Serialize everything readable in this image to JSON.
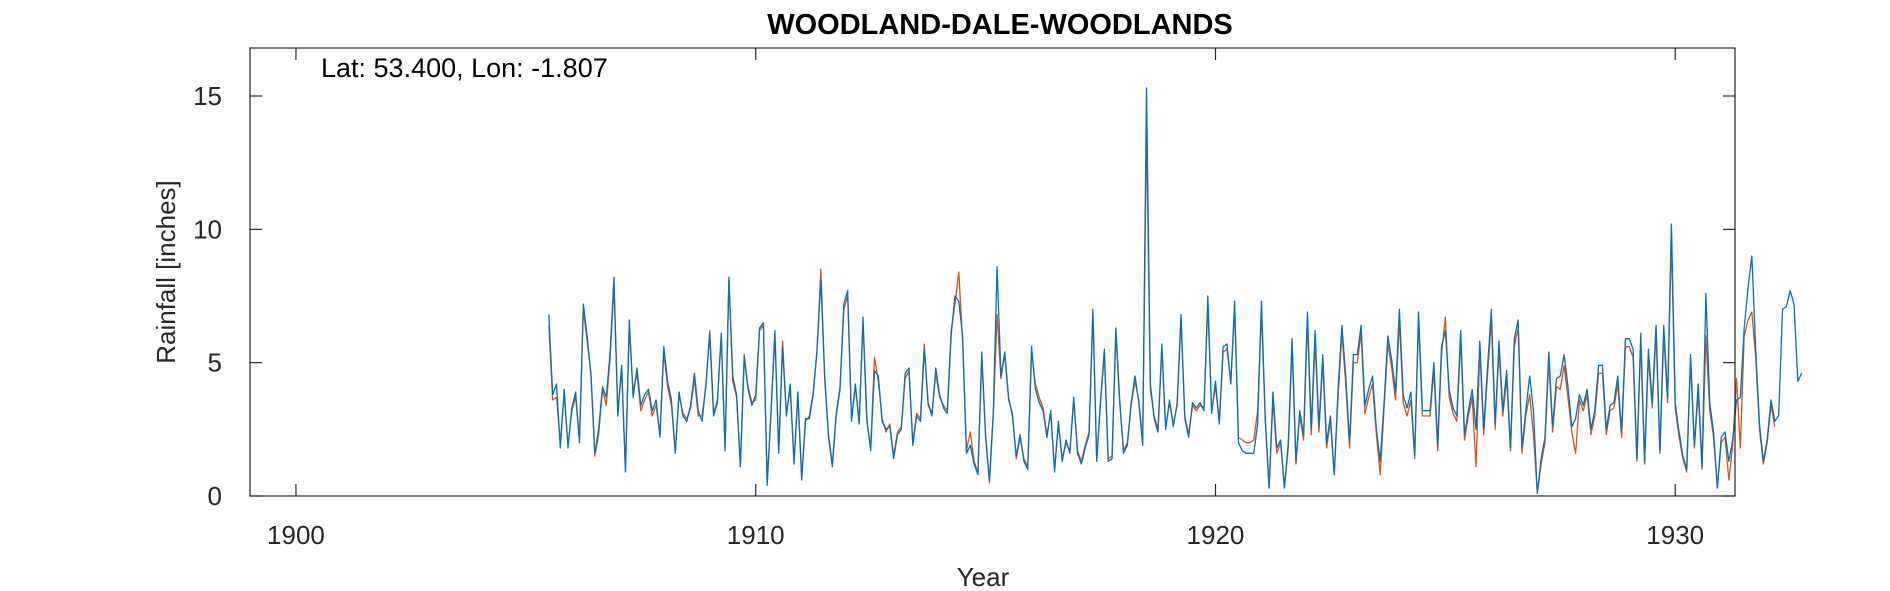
{
  "chart_data": {
    "type": "line",
    "title": "WOODLAND-DALE-WOODLANDS",
    "xlabel": "Year",
    "ylabel": "Rainfall [inches]",
    "annotation": "Lat: 53.400, Lon: -1.807",
    "xlim": [
      1899,
      1931.3
    ],
    "ylim": [
      0,
      16.8
    ],
    "xticks": [
      1900,
      1910,
      1920,
      1930
    ],
    "yticks": [
      0,
      5,
      10,
      15
    ],
    "grid": false,
    "series": [
      {
        "color": "#0072BD",
        "x_start": 1905.5,
        "x_step": 0.0833333,
        "values": [
          6.8,
          3.8,
          4.2,
          1.8,
          4.0,
          1.8,
          3.3,
          3.9,
          2.0,
          7.2,
          6.0,
          4.5,
          1.6,
          2.5,
          4.1,
          3.7,
          5.4,
          8.2,
          3.0,
          4.9,
          0.9,
          6.6,
          3.7,
          4.8,
          3.4,
          3.8,
          4.0,
          3.2,
          3.6,
          2.2,
          5.6,
          4.3,
          3.6,
          1.6,
          3.9,
          3.0,
          2.8,
          3.4,
          4.6,
          3.2,
          2.8,
          4.2,
          6.1,
          3.0,
          3.5,
          6.1,
          1.7,
          8.2,
          4.5,
          3.8,
          1.1,
          5.3,
          4.0,
          3.4,
          3.8,
          6.3,
          6.5,
          0.4,
          3.2,
          6.2,
          1.6,
          5.6,
          3.0,
          4.2,
          1.2,
          3.9,
          0.6,
          2.9,
          2.9,
          3.8,
          5.5,
          8.1,
          4.5,
          2.2,
          1.1,
          3.0,
          4.0,
          7.2,
          7.7,
          2.8,
          4.2,
          2.7,
          6.7,
          2.9,
          1.7,
          4.7,
          4.5,
          2.8,
          2.5,
          2.6,
          1.4,
          2.3,
          2.5,
          4.6,
          4.8,
          1.9,
          3.0,
          2.8,
          5.5,
          3.5,
          3.0,
          4.8,
          3.8,
          3.3,
          3.1,
          6.0,
          7.5,
          7.3,
          6.0,
          1.6,
          1.9,
          1.2,
          0.8,
          5.4,
          2.2,
          0.6,
          3.1,
          8.6,
          4.5,
          5.4,
          3.7,
          3.0,
          1.5,
          2.3,
          1.3,
          1.0,
          5.6,
          4.0,
          3.5,
          3.2,
          2.2,
          3.2,
          0.9,
          2.8,
          1.3,
          2.1,
          1.6,
          3.7,
          1.6,
          1.2,
          1.8,
          2.3,
          7.0,
          1.3,
          3.5,
          5.5,
          1.3,
          1.4,
          6.3,
          3.6,
          1.6,
          1.9,
          3.5,
          4.5,
          3.5,
          1.9,
          15.3,
          4.2,
          2.9,
          2.4,
          5.7,
          2.5,
          3.6,
          2.6,
          3.5,
          6.8,
          2.9,
          2.2,
          3.5,
          3.3,
          3.5,
          3.2,
          7.5,
          3.1,
          4.3,
          2.7,
          5.6,
          5.7,
          4.2,
          7.3,
          2.0,
          1.7,
          1.6,
          1.6,
          1.6,
          2.7,
          7.3,
          2.9,
          0.3,
          3.9,
          1.8,
          2.1,
          0.3,
          2.0,
          5.9,
          1.3,
          3.2,
          2.3,
          6.9,
          2.5,
          6.2,
          2.6,
          5.3,
          2.0,
          3.0,
          0.8,
          4.0,
          6.4,
          4.5,
          2.0,
          5.3,
          5.3,
          6.4,
          3.4,
          4.0,
          4.5,
          2.5,
          1.3,
          3.5,
          6.0,
          5.1,
          3.9,
          7.0,
          3.8,
          3.3,
          3.9,
          1.5,
          6.9,
          3.2,
          3.2,
          3.2,
          5.0,
          1.9,
          5.6,
          6.2,
          4.0,
          3.3,
          3.0,
          6.2,
          2.3,
          3.2,
          4.0,
          2.5,
          5.8,
          2.5,
          4.8,
          7.0,
          2.7,
          5.8,
          3.2,
          4.7,
          1.8,
          5.9,
          6.6,
          1.8,
          3.2,
          4.5,
          3.2,
          0.1,
          1.4,
          2.2,
          5.4,
          2.6,
          4.4,
          4.5,
          5.3,
          4.1,
          2.6,
          2.9,
          3.8,
          3.4,
          4.0,
          2.5,
          3.2,
          4.9,
          4.9,
          2.5,
          3.4,
          3.5,
          4.5,
          2.4,
          5.9,
          5.9,
          5.5,
          1.4,
          6.1,
          1.3,
          5.5,
          3.5,
          6.4,
          1.7,
          6.4,
          3.7,
          10.2,
          3.5,
          2.4,
          1.5,
          1.0,
          5.3,
          1.9,
          4.2,
          1.1,
          7.6,
          3.5,
          2.4,
          0.3,
          2.2,
          2.4,
          1.3,
          2.1,
          3.6,
          3.7,
          6.3,
          7.8,
          9.0,
          5.5,
          2.7,
          1.3,
          2.1,
          3.6,
          2.8,
          3.0,
          7.0,
          7.1,
          7.7,
          7.2,
          4.3,
          4.6
        ]
      },
      {
        "color": "#D95319",
        "x_start": 1905.5,
        "x_step": 0.0833333,
        "values": [
          6.4,
          3.6,
          3.7,
          2.0,
          3.8,
          1.9,
          3.2,
          3.7,
          2.1,
          7.0,
          5.8,
          4.6,
          1.5,
          2.3,
          4.0,
          3.4,
          5.2,
          7.9,
          3.2,
          4.7,
          1.0,
          6.4,
          3.9,
          4.6,
          3.2,
          3.6,
          3.9,
          3.0,
          3.4,
          2.3,
          5.4,
          4.1,
          3.4,
          1.7,
          3.8,
          3.1,
          2.9,
          3.3,
          4.4,
          3.0,
          3.0,
          4.1,
          6.2,
          3.1,
          3.6,
          6.0,
          1.8,
          8.1,
          4.3,
          3.7,
          1.2,
          5.1,
          4.1,
          3.5,
          3.6,
          6.2,
          6.4,
          0.5,
          3.1,
          6.0,
          1.7,
          5.8,
          3.1,
          4.0,
          1.3,
          3.7,
          0.7,
          2.8,
          3.0,
          3.9,
          5.4,
          8.5,
          4.4,
          2.3,
          1.2,
          3.1,
          4.1,
          7.0,
          7.5,
          2.9,
          4.1,
          2.8,
          6.5,
          2.8,
          1.8,
          5.2,
          4.3,
          2.9,
          2.4,
          2.7,
          1.5,
          2.4,
          2.6,
          4.4,
          4.7,
          2.0,
          3.1,
          2.9,
          5.7,
          3.4,
          3.1,
          4.6,
          3.7,
          3.4,
          3.2,
          6.2,
          7.2,
          8.4,
          5.8,
          1.7,
          2.4,
          1.3,
          0.9,
          5.2,
          2.3,
          0.5,
          3.0,
          6.8,
          4.4,
          5.3,
          3.6,
          3.1,
          1.4,
          2.2,
          1.4,
          1.1,
          5.4,
          4.2,
          3.7,
          3.3,
          2.3,
          3.1,
          1.0,
          2.7,
          1.4,
          2.0,
          1.7,
          3.6,
          1.7,
          1.3,
          1.9,
          2.4,
          6.8,
          1.4,
          3.6,
          5.3,
          1.4,
          1.5,
          6.1,
          3.5,
          1.7,
          2.0,
          3.4,
          4.3,
          3.6,
          2.0,
          13.8,
          4.0,
          3.0,
          2.5,
          5.5,
          2.6,
          3.5,
          2.7,
          3.4,
          6.6,
          3.0,
          2.3,
          3.4,
          3.2,
          3.4,
          3.3,
          7.2,
          3.2,
          4.1,
          2.8,
          5.4,
          5.5,
          4.3,
          7.0,
          2.2,
          2.1,
          2.0,
          2.0,
          2.1,
          3.2,
          6.9,
          2.8,
          0.3,
          3.6,
          1.6,
          2.0,
          0.3,
          1.8,
          5.6,
          1.2,
          3.0,
          2.1,
          6.6,
          2.3,
          5.8,
          2.4,
          5.0,
          1.8,
          2.8,
          0.8,
          3.7,
          6.1,
          4.2,
          1.8,
          5.0,
          5.0,
          6.1,
          3.1,
          3.7,
          4.2,
          2.3,
          0.8,
          3.3,
          5.7,
          4.8,
          3.6,
          6.6,
          3.5,
          3.0,
          3.6,
          1.4,
          6.6,
          3.0,
          3.0,
          3.0,
          4.7,
          1.7,
          5.3,
          6.7,
          3.7,
          3.1,
          2.8,
          5.9,
          2.1,
          3.0,
          3.7,
          1.1,
          5.5,
          2.3,
          4.5,
          6.6,
          2.5,
          5.5,
          3.0,
          4.4,
          1.7,
          5.6,
          6.3,
          1.6,
          3.0,
          3.8,
          2.3,
          0.1,
          1.2,
          2.0,
          5.1,
          2.4,
          4.1,
          4.0,
          4.9,
          3.7,
          2.4,
          1.6,
          3.6,
          3.2,
          3.8,
          2.3,
          3.0,
          4.6,
          4.6,
          2.3,
          3.2,
          3.3,
          4.2,
          2.2,
          5.6,
          5.6,
          5.2,
          1.3,
          5.8,
          1.2,
          5.2,
          3.3,
          6.1,
          1.6,
          6.1,
          3.5,
          9.6,
          3.3,
          2.2,
          1.4,
          0.9,
          5.0,
          1.8,
          3.9,
          1.0,
          6.0,
          3.2,
          2.2,
          0.3,
          2.0,
          2.2,
          0.6,
          1.9,
          4.4,
          1.8,
          6.0,
          6.6,
          6.9,
          5.2,
          2.5,
          1.2,
          2.0,
          3.4,
          2.6
        ]
      }
    ]
  }
}
